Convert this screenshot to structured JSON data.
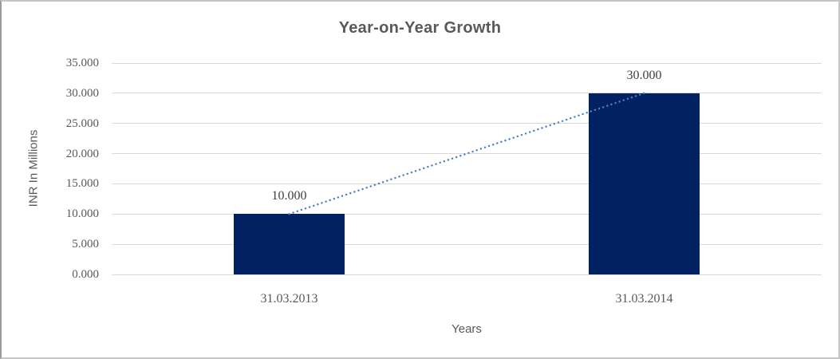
{
  "window": {
    "background": "#ffffff",
    "border_color": "#c6c6c6"
  },
  "chart_data": {
    "type": "bar",
    "title": "Year-on-Year Growth",
    "xlabel": "Years",
    "ylabel": "INR In Millions",
    "categories": [
      "31.03.2013",
      "31.03.2014"
    ],
    "values": [
      10,
      30
    ],
    "value_labels": [
      "10.000",
      "30.000"
    ],
    "ylim": [
      0,
      35
    ],
    "ytick_interval": 5,
    "ytick_labels": [
      "0.000",
      "5.000",
      "10.000",
      "15.000",
      "20.000",
      "25.000",
      "30.000",
      "35.000"
    ],
    "grid": true,
    "legend": "none",
    "colors": {
      "bar": "#022160",
      "gridline": "#d9d9d9",
      "title_text": "#595959",
      "axis_text": "#595959",
      "value_label_text": "#3f3f3f",
      "trendline": "#4a82c4"
    },
    "trendline": {
      "style": "dotted",
      "color": "#4a82c4",
      "points": [
        [
          0,
          10
        ],
        [
          1,
          30
        ]
      ]
    }
  }
}
